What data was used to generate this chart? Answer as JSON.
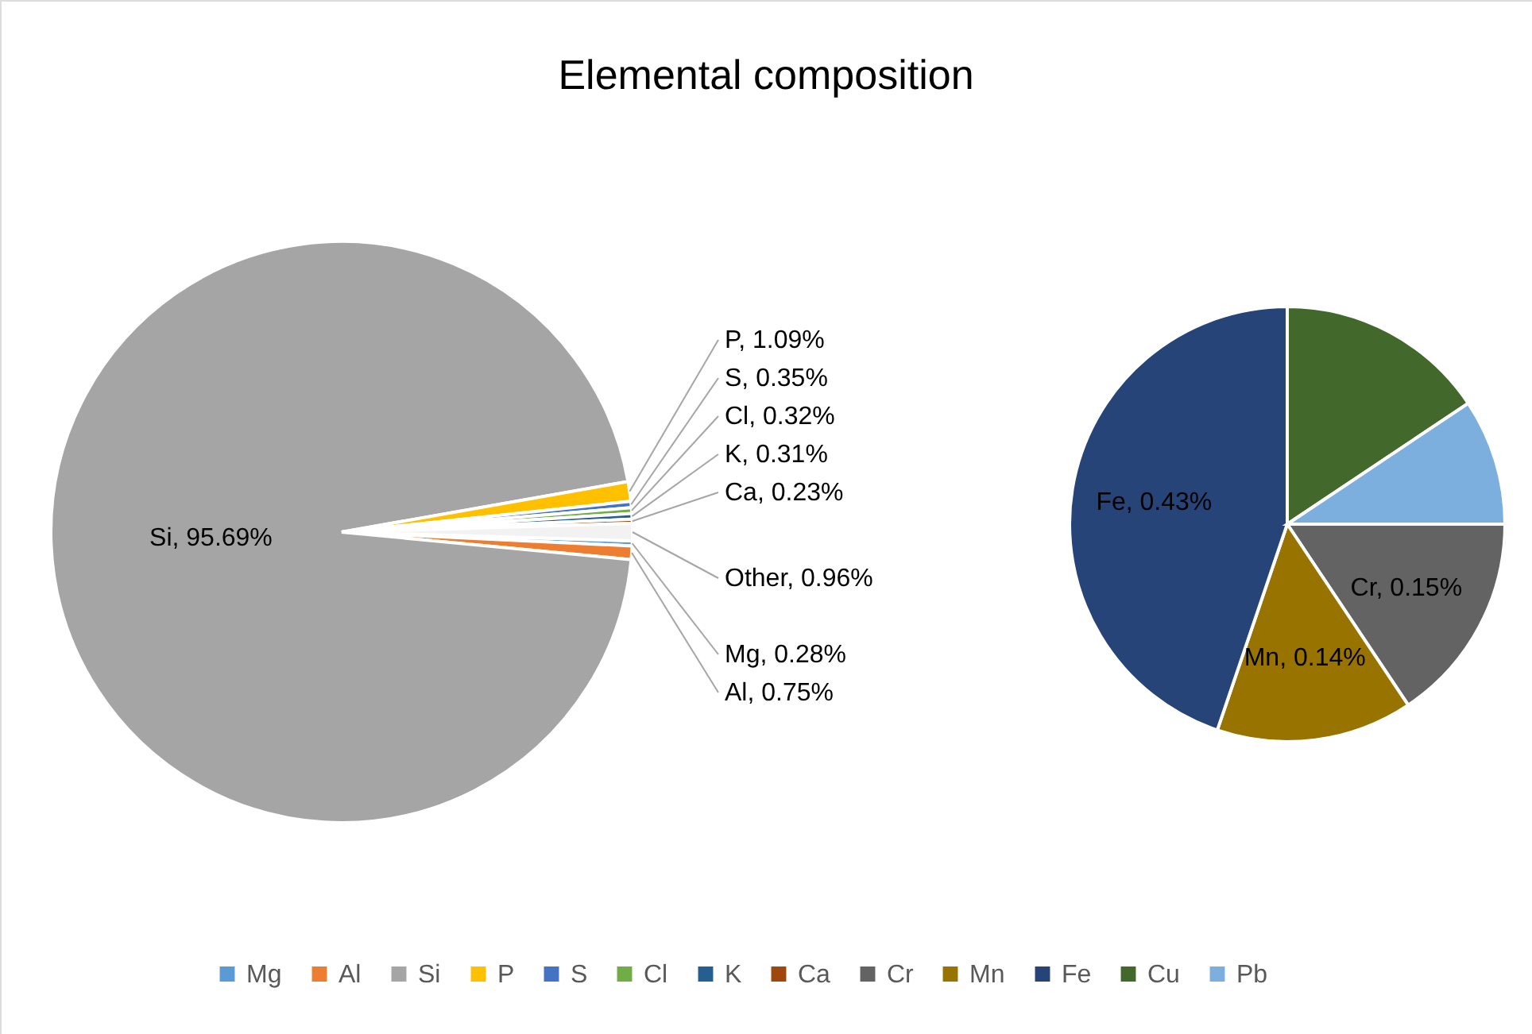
{
  "chart_data": [
    {
      "type": "pie",
      "title": "Elemental composition",
      "legend": "bottom",
      "categories": [
        "Mg",
        "Al",
        "Si",
        "P",
        "S",
        "Cl",
        "K",
        "Ca",
        null
      ],
      "values": [
        0.28,
        0.75,
        95.69,
        1.09,
        0.35,
        0.32,
        0.31,
        0.23,
        0.96
      ],
      "colors": [
        "#5b9bd5",
        "#ed7d31",
        "#a5a5a5",
        "#ffc000",
        "#4472c4",
        "#70ad47",
        "#255e91",
        "#9e480e",
        "#f2f2f2"
      ],
      "value_labels": [
        "Mg, 0.28%",
        "Al, 0.75%",
        "Si, 95.69%",
        "P, 1.09%",
        "S, 0.35%",
        "Cl, 0.32%",
        "K, 0.31%",
        "Ca, 0.23%",
        "Other, 0.96%"
      ]
    },
    {
      "type": "pie",
      "legend": "bottom",
      "categories": [
        "Cr",
        "Mn",
        "Fe",
        "Cu",
        "Pb"
      ],
      "values": [
        0.15,
        0.14,
        0.43,
        0.15,
        0.09
      ],
      "colors": [
        "#636363",
        "#997300",
        "#264478",
        "#43682b",
        "#7cafdd"
      ],
      "value_labels": [
        "Cr, 0.15%",
        "Mn, 0.14%",
        "Fe, 0.43%",
        null,
        null
      ]
    }
  ]
}
